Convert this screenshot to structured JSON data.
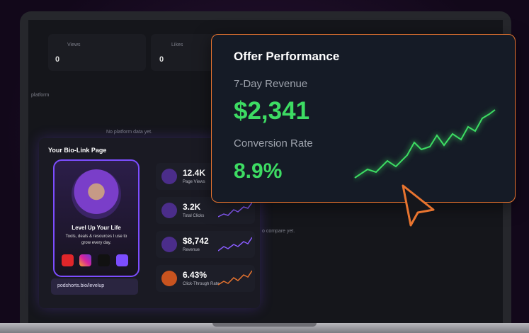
{
  "top_cards": [
    {
      "label": "Views",
      "value": "0"
    },
    {
      "label": "Likes",
      "value": "0"
    }
  ],
  "platform_panel": {
    "label": "platform",
    "empty": "No platform data yet."
  },
  "compare_note": "o compare yet.",
  "bio_link": {
    "title": "Your Bio-Link Page",
    "phone": {
      "heading": "Level Up Your Life",
      "tagline": "Tools, deals & resources I use to grow every day."
    },
    "url": "podshorts.bio/levelup",
    "stats": [
      {
        "value": "12.4K",
        "label": "Page Views"
      },
      {
        "value": "3.2K",
        "label": "Total Clicks"
      },
      {
        "value": "$8,742",
        "label": "Revenue"
      },
      {
        "value": "6.43%",
        "label": "Click-Through Rate"
      }
    ]
  },
  "offer": {
    "title": "Offer Performance",
    "revenue_label": "7-Day Revenue",
    "revenue": "$2,341",
    "conversion_label": "Conversion Rate",
    "conversion": "8.9%"
  }
}
